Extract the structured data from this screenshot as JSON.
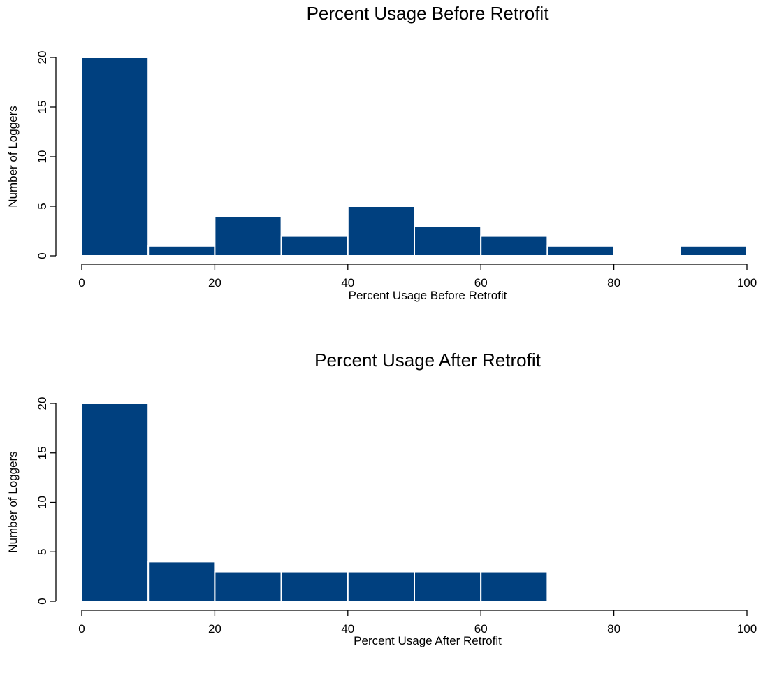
{
  "chart_data": [
    {
      "type": "bar",
      "title": "Percent Usage Before Retrofit",
      "xlabel": "Percent Usage Before Retrofit",
      "ylabel": "Number of Loggers",
      "xlim": [
        0,
        100
      ],
      "ylim": [
        0,
        20
      ],
      "xticks": [
        "0",
        "20",
        "40",
        "60",
        "80",
        "100"
      ],
      "yticks": [
        "0",
        "5",
        "10",
        "15",
        "20"
      ],
      "bin_edges": [
        0,
        10,
        20,
        30,
        40,
        50,
        60,
        70,
        80,
        90,
        100
      ],
      "values": [
        20,
        1,
        4,
        2,
        5,
        3,
        2,
        1,
        0,
        1
      ],
      "color": "#00407f",
      "grid": false
    },
    {
      "type": "bar",
      "title": "Percent Usage After Retrofit",
      "xlabel": "Percent Usage After Retrofit",
      "ylabel": "Number of Loggers",
      "xlim": [
        0,
        100
      ],
      "ylim": [
        0,
        20
      ],
      "xticks": [
        "0",
        "20",
        "40",
        "60",
        "80",
        "100"
      ],
      "yticks": [
        "0",
        "5",
        "10",
        "15",
        "20"
      ],
      "bin_edges": [
        0,
        10,
        20,
        30,
        40,
        50,
        60,
        70
      ],
      "values": [
        20,
        4,
        3,
        3,
        3,
        3,
        3
      ],
      "color": "#00407f",
      "grid": false
    }
  ]
}
